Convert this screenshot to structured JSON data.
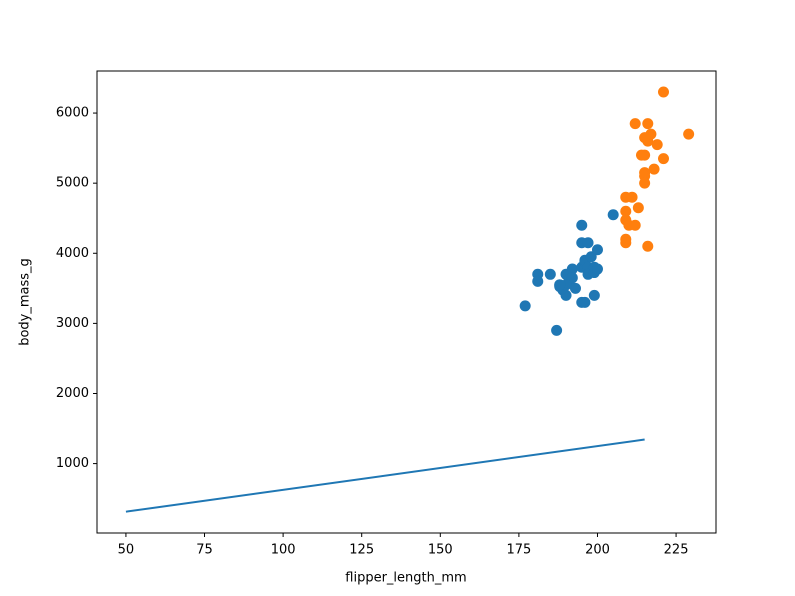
{
  "chart_data": {
    "type": "scatter",
    "xlabel": "flipper_length_mm",
    "ylabel": "body_mass_g",
    "xlim": [
      40.8,
      237.7
    ],
    "ylim": [
      10,
      6600
    ],
    "xticks": [
      50,
      75,
      100,
      125,
      150,
      175,
      200,
      225
    ],
    "yticks": [
      1000,
      2000,
      3000,
      4000,
      5000,
      6000
    ],
    "grid": false,
    "series": [
      {
        "color": "#1f77b4",
        "x": [
          177,
          181,
          181,
          185,
          187,
          188,
          188,
          189,
          190,
          190,
          191,
          191,
          192,
          192,
          193,
          195,
          195,
          195,
          195,
          196,
          196,
          196,
          197,
          197,
          197,
          198,
          199,
          199,
          200,
          199,
          200,
          205,
          189,
          190,
          188
        ],
        "values": [
          3250,
          3700,
          3600,
          3700,
          2900,
          3525,
          3550,
          3475,
          3400,
          3700,
          3600,
          3625,
          3775,
          3650,
          3500,
          4400,
          4150,
          3300,
          3800,
          3875,
          3900,
          3300,
          4150,
          3800,
          3700,
          3950,
          3725,
          3800,
          3775,
          3400,
          4050,
          4550,
          3500,
          3550,
          3550
        ]
      },
      {
        "color": "#ff7f0e",
        "x": [
          212,
          216,
          215,
          215,
          216,
          221,
          229,
          217,
          219,
          214,
          221,
          218,
          215,
          215,
          215,
          209,
          211,
          209,
          209,
          210,
          212,
          213,
          209,
          209,
          216
        ],
        "values": [
          5850,
          5850,
          5650,
          5400,
          5600,
          6300,
          5700,
          5700,
          5550,
          5400,
          5350,
          5200,
          5150,
          5100,
          5000,
          4800,
          4800,
          4600,
          4475,
          4400,
          4400,
          4650,
          4200,
          4150,
          4100
        ]
      }
    ],
    "line": {
      "color": "#1f77b4",
      "x": [
        50,
        215
      ],
      "values": [
        314,
        1343
      ]
    }
  }
}
